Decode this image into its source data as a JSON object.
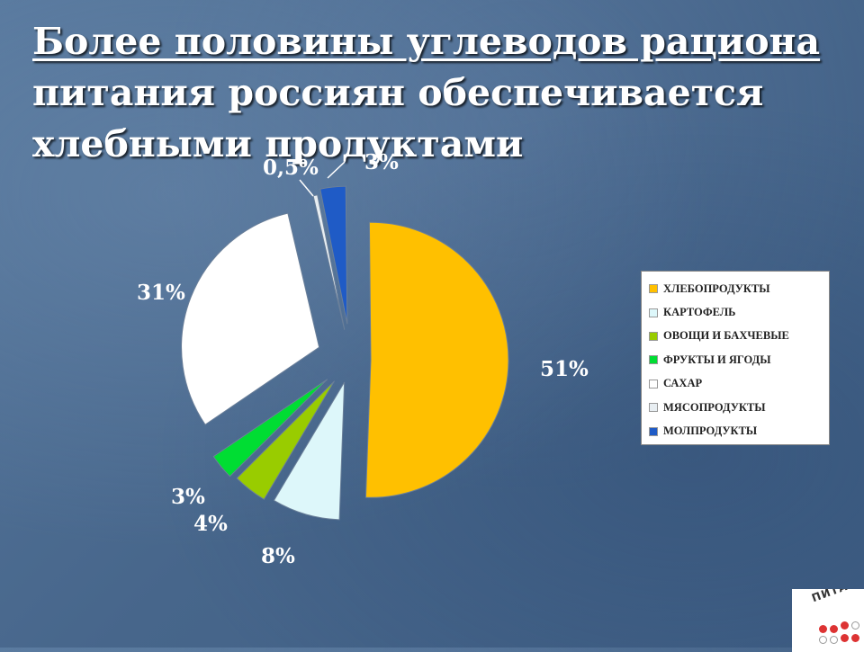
{
  "title": {
    "line1": "Более половины углеводов рациона",
    "line2": "питания россиян обеспечивается",
    "line3": "хлебными продуктами"
  },
  "chart_data": {
    "type": "pie",
    "title": "Более половины углеводов рациона питания россиян обеспечивается хлебными продуктами",
    "slices": [
      {
        "name": "ХЛЕБОПРОДУКТЫ",
        "value": 51,
        "label": "51%",
        "color": "#FFC000"
      },
      {
        "name": "КАРТОФЕЛЬ",
        "value": 8,
        "label": "8%",
        "color": "#DDF7FA"
      },
      {
        "name": "ОВОЩИ И БАХЧЕВЫЕ",
        "value": 4,
        "label": "4%",
        "color": "#99CC00"
      },
      {
        "name": "ФРУКТЫ И ЯГОДЫ",
        "value": 3,
        "label": "3%",
        "color": "#00DD33"
      },
      {
        "name": "САХАР",
        "value": 31,
        "label": "31%",
        "color": "#FFFFFF"
      },
      {
        "name": "МЯСОПРОДУКТЫ",
        "value": 0.5,
        "label": "0,5%",
        "color": "#E8EEF2"
      },
      {
        "name": "МОЛПРОДУКТЫ",
        "value": 3,
        "label": "3%",
        "color": "#1F5BC6"
      }
    ],
    "legend_position": "right"
  },
  "legend": {
    "items": [
      {
        "label": "ХЛЕБОПРОДУКТЫ",
        "color": "#FFC000"
      },
      {
        "label": "КАРТОФЕЛЬ",
        "color": "#DDF7FA"
      },
      {
        "label": "ОВОЩИ И БАХЧЕВЫЕ",
        "color": "#99CC00"
      },
      {
        "label": "ФРУКТЫ И ЯГОДЫ",
        "color": "#00DD33"
      },
      {
        "label": "САХАР",
        "color": "#FFFFFF"
      },
      {
        "label": "МЯСОПРОДУКТЫ",
        "color": "#E8EEF2"
      },
      {
        "label": "МОЛПРОДУКТЫ",
        "color": "#1F5BC6"
      }
    ]
  },
  "logo": {
    "text": "ПИТАН"
  }
}
